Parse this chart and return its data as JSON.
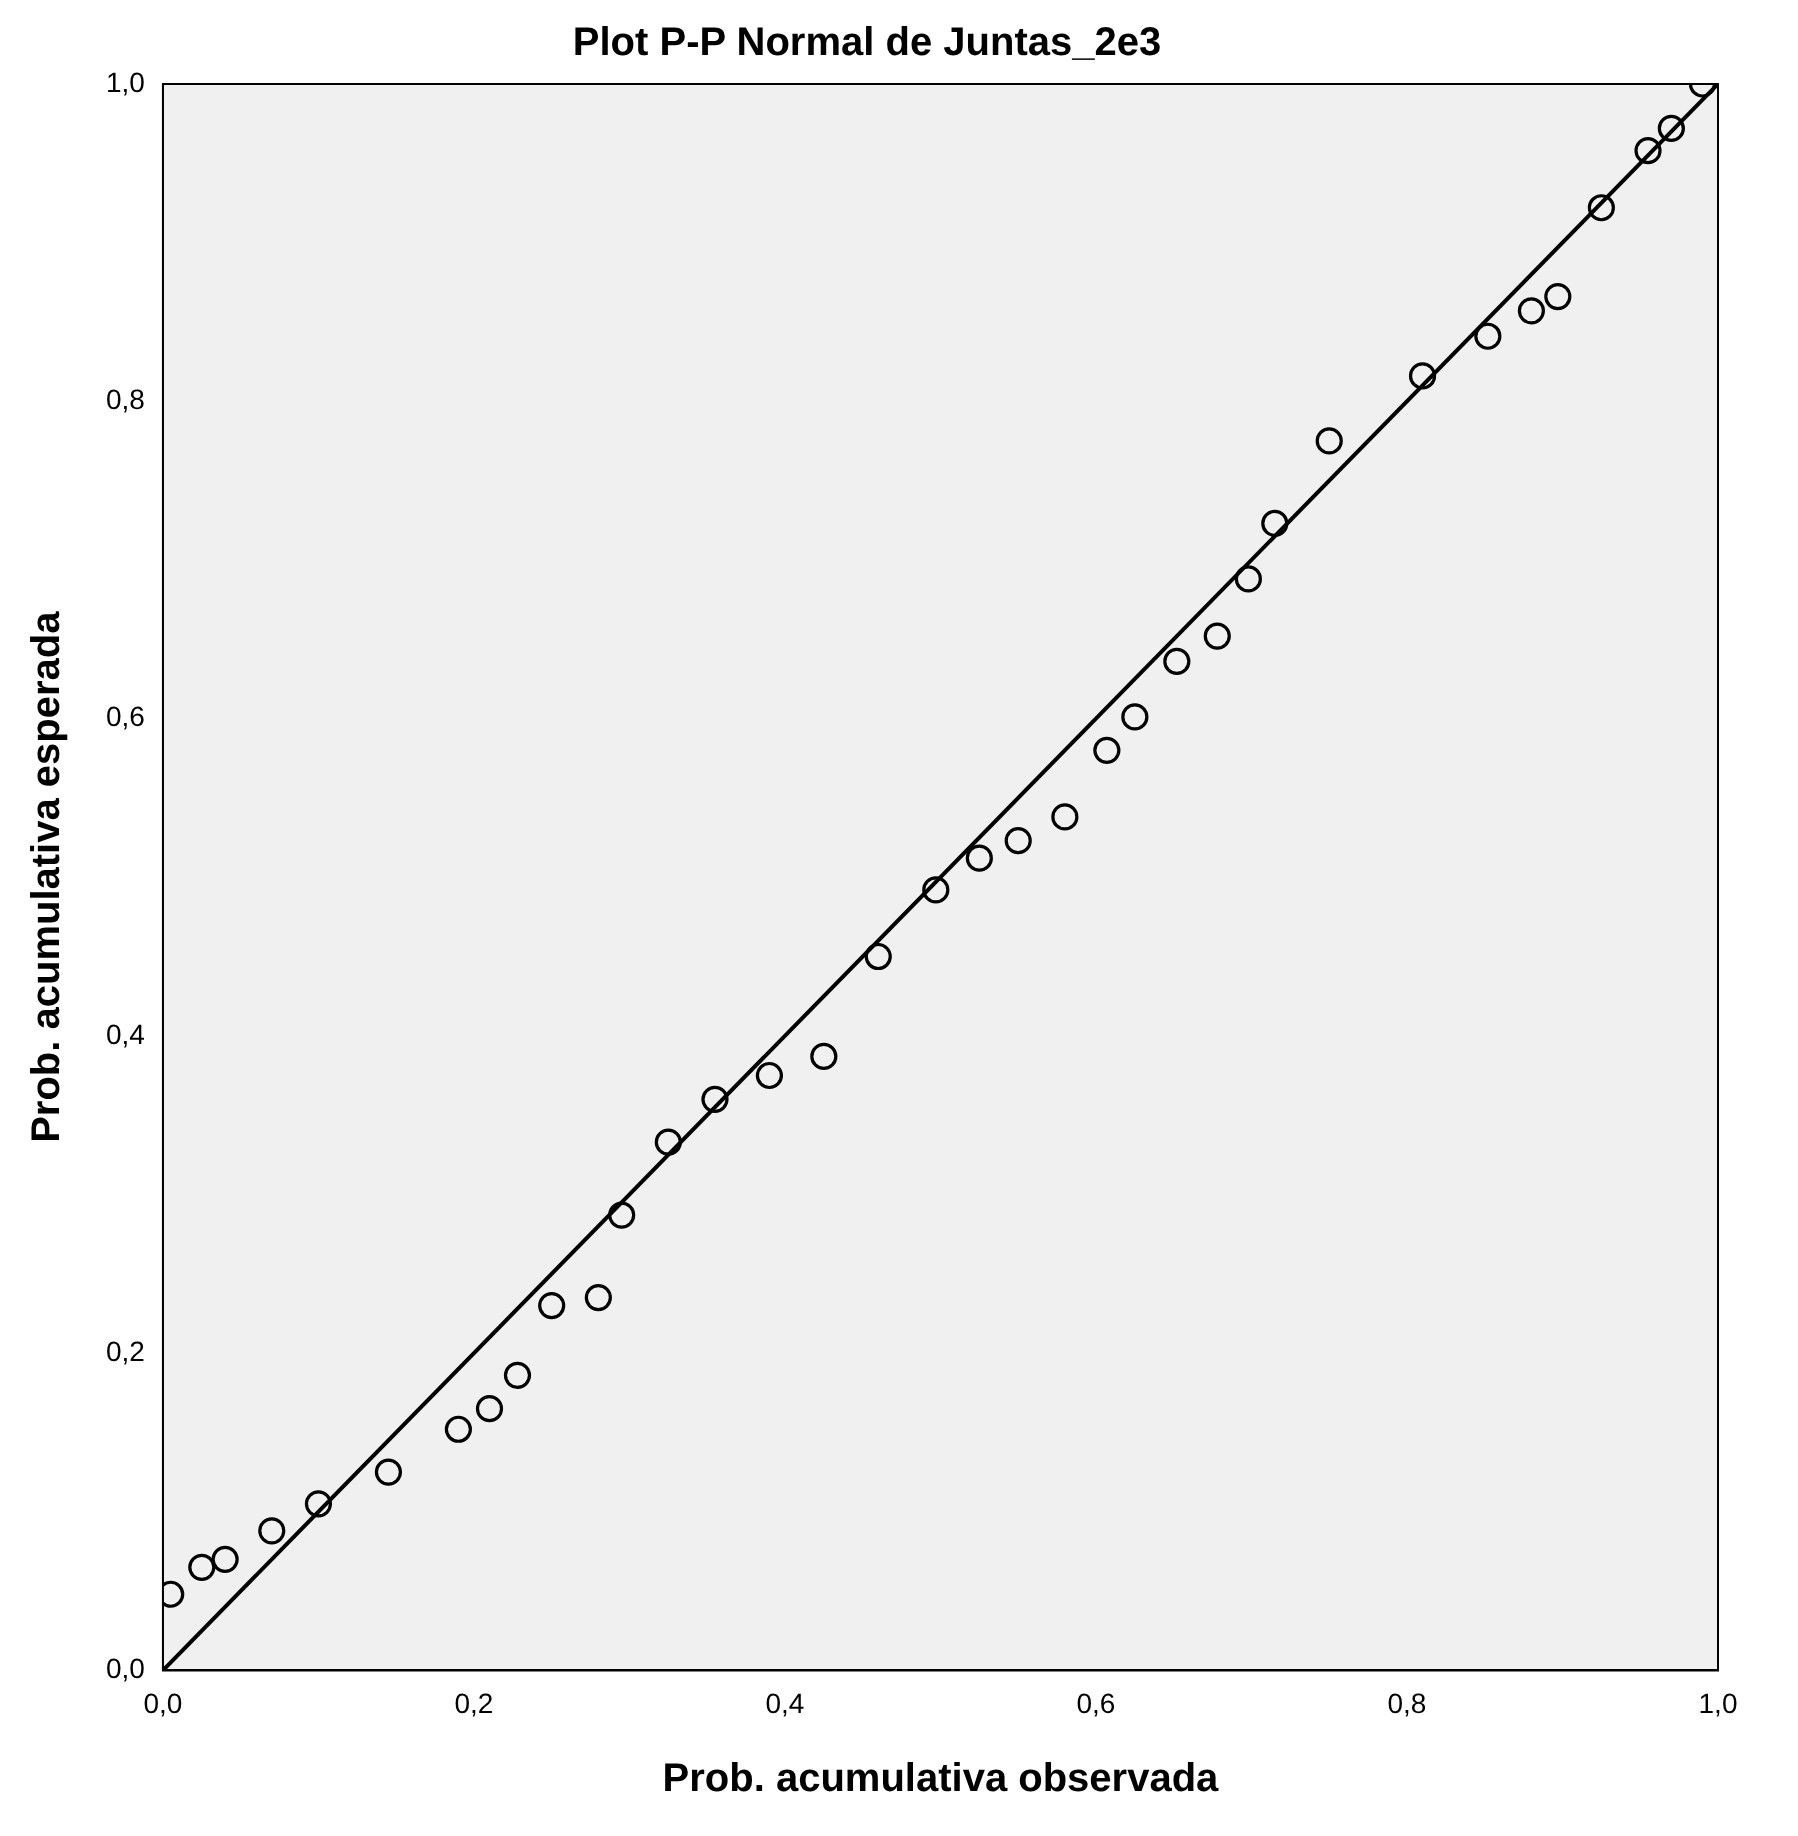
{
  "chart_data": {
    "type": "scatter",
    "title": "Plot P-P Normal de Juntas_2e3",
    "xlabel": "Prob. acumulativa observada",
    "ylabel": "Prob. acumulativa esperada",
    "xlim": [
      0,
      1
    ],
    "ylim": [
      0,
      1
    ],
    "xticks": [
      {
        "value": 0,
        "label": "0,0"
      },
      {
        "value": 0.2,
        "label": "0,2"
      },
      {
        "value": 0.4,
        "label": "0,4"
      },
      {
        "value": 0.6,
        "label": "0,6"
      },
      {
        "value": 0.8,
        "label": "0,8"
      },
      {
        "value": 1,
        "label": "1,0"
      }
    ],
    "yticks": [
      {
        "value": 0,
        "label": "0,0"
      },
      {
        "value": 0.2,
        "label": "0,2"
      },
      {
        "value": 0.4,
        "label": "0,4"
      },
      {
        "value": 0.6,
        "label": "0,6"
      },
      {
        "value": 0.8,
        "label": "0,8"
      },
      {
        "value": 1,
        "label": "1,0"
      }
    ],
    "grid": false,
    "legend": false,
    "marker": "circle",
    "series": [
      {
        "color": "#000000",
        "x": [
          0.005,
          0.025,
          0.04,
          0.07,
          0.1,
          0.145,
          0.19,
          0.21,
          0.228,
          0.25,
          0.28,
          0.295,
          0.325,
          0.355,
          0.39,
          0.425,
          0.46,
          0.497,
          0.525,
          0.55,
          0.58,
          0.607,
          0.625,
          0.652,
          0.678,
          0.698,
          0.715,
          0.75,
          0.81,
          0.852,
          0.88,
          0.897,
          0.925,
          0.955,
          0.97,
          0.99
        ],
        "values": [
          0.048,
          0.065,
          0.07,
          0.088,
          0.105,
          0.125,
          0.152,
          0.165,
          0.186,
          0.23,
          0.235,
          0.287,
          0.333,
          0.36,
          0.375,
          0.387,
          0.45,
          0.492,
          0.512,
          0.523,
          0.538,
          0.58,
          0.601,
          0.636,
          0.652,
          0.688,
          0.723,
          0.775,
          0.816,
          0.841,
          0.857,
          0.866,
          0.922,
          0.958,
          0.972,
          1.0
        ]
      },
      {
        "type": "line",
        "color": "#000000",
        "x": [
          0,
          1
        ],
        "values": [
          0,
          1
        ],
        "marker": "none",
        "line_style": "solid"
      }
    ]
  }
}
